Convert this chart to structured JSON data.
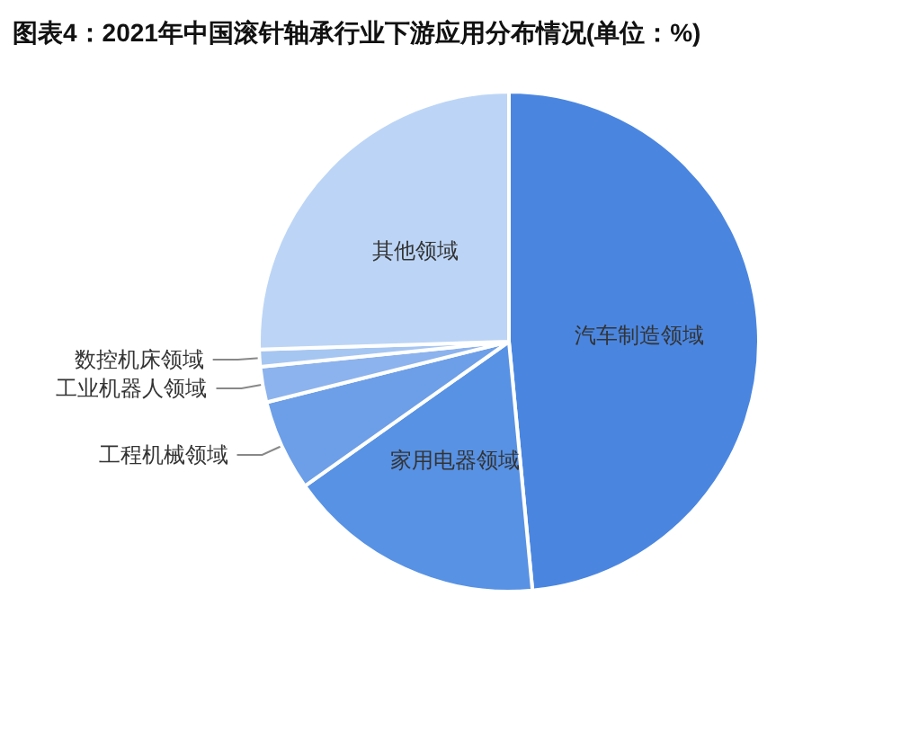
{
  "chart_data": {
    "type": "pie",
    "title": "图表4：2021年中国滚针轴承行业下游应用分布情况(单位：%)",
    "categories": [
      "汽车制造领域",
      "家用电器领域",
      "工程机械领域",
      "工业机器人领域",
      "数控机床领域",
      "其他领域"
    ],
    "values": [
      48.5,
      16.7,
      5.9,
      2.3,
      1.1,
      25.5
    ],
    "colors": [
      "#4a86e0",
      "#5892e4",
      "#6d9fe8",
      "#8cb3ed",
      "#a6c6f2",
      "#bcd5f6"
    ]
  }
}
